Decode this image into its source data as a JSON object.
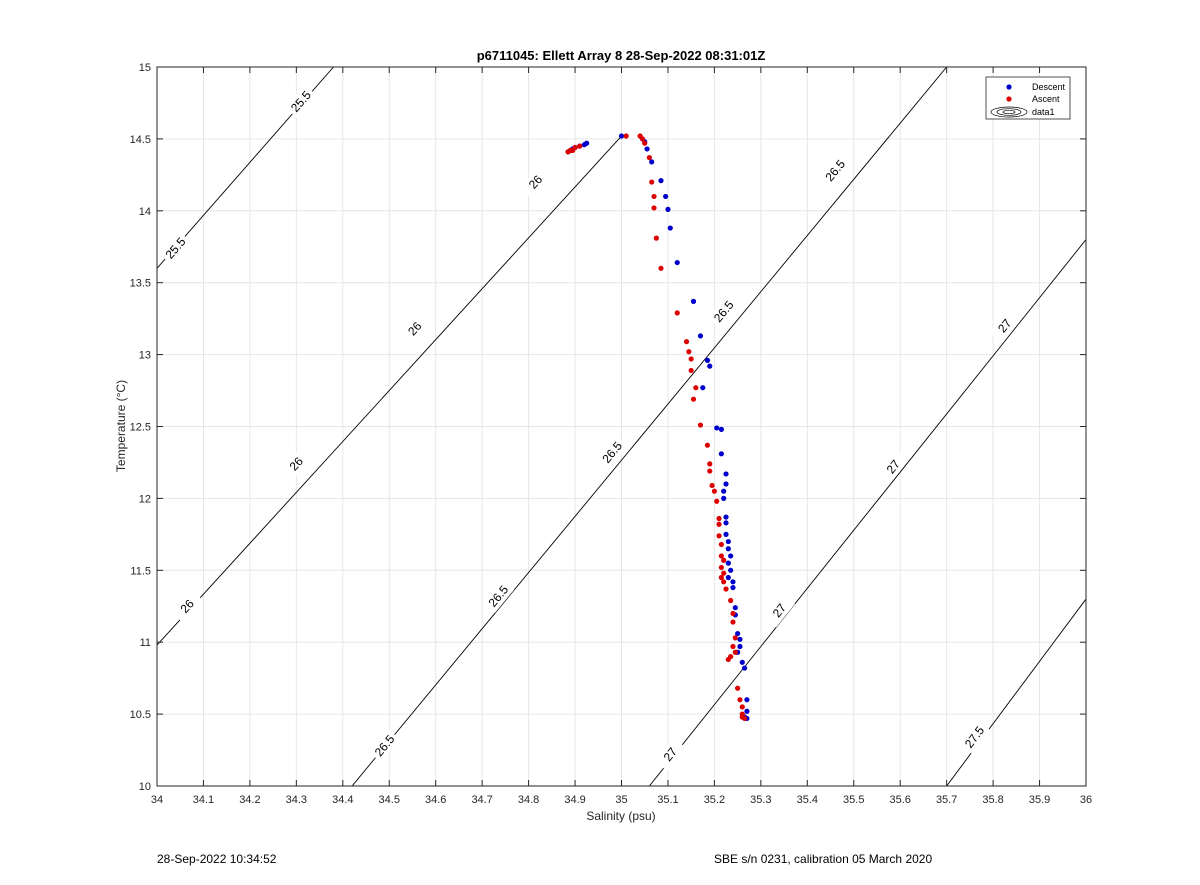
{
  "footer": {
    "left": "28-Sep-2022 10:34:52",
    "right": "SBE s/n 0231, calibration 05 March 2020"
  },
  "chart_data": {
    "type": "scatter",
    "title": "p6711045: Ellett Array 8 28-Sep-2022 08:31:01Z",
    "xlabel": "Salinity (psu)",
    "ylabel": "Temperature (°C)",
    "xlim": [
      34,
      36
    ],
    "ylim": [
      10,
      15
    ],
    "xticks": [
      "34",
      "34.1",
      "34.2",
      "34.3",
      "34.4",
      "34.5",
      "34.6",
      "34.7",
      "34.8",
      "34.9",
      "35",
      "35.1",
      "35.2",
      "35.3",
      "35.4",
      "35.5",
      "35.6",
      "35.7",
      "35.8",
      "35.9",
      "36"
    ],
    "yticks": [
      "10",
      "10.5",
      "11",
      "11.5",
      "12",
      "12.5",
      "13",
      "13.5",
      "14",
      "14.5",
      "15"
    ],
    "grid": true,
    "legend_position": "top-right",
    "legend": [
      "Descent",
      "Ascent",
      "data1"
    ],
    "colors": {
      "descent": "#0000cc",
      "ascent": "#dd0000",
      "contour": "#000000",
      "grid": "#e6e6e6"
    },
    "contours": [
      {
        "level": 25.5,
        "line": [
          [
            34.0,
            13.6
          ],
          [
            34.38,
            15.0
          ]
        ],
        "labels": [
          {
            "text": "25.5",
            "x": 34.04,
            "y": 13.74
          },
          {
            "text": "25.5",
            "x": 34.31,
            "y": 14.76
          }
        ]
      },
      {
        "level": 26,
        "line": [
          [
            34.0,
            10.98
          ],
          [
            35.0,
            14.52
          ]
        ],
        "labels": [
          {
            "text": "26",
            "x": 34.065,
            "y": 11.25
          },
          {
            "text": "26",
            "x": 34.3,
            "y": 12.24
          },
          {
            "text": "26",
            "x": 34.555,
            "y": 13.18
          },
          {
            "text": "26",
            "x": 34.815,
            "y": 14.2
          }
        ]
      },
      {
        "level": 26.5,
        "line": [
          [
            34.42,
            10.0
          ],
          [
            35.7,
            15.0
          ]
        ],
        "labels": [
          {
            "text": "26.5",
            "x": 34.49,
            "y": 10.28
          },
          {
            "text": "26.5",
            "x": 34.735,
            "y": 11.32
          },
          {
            "text": "26.5",
            "x": 34.98,
            "y": 12.32
          },
          {
            "text": "26.5",
            "x": 35.22,
            "y": 13.3
          },
          {
            "text": "26.5",
            "x": 35.46,
            "y": 14.28
          }
        ]
      },
      {
        "level": 27,
        "line": [
          [
            35.06,
            10.0
          ],
          [
            36.0,
            13.8
          ]
        ],
        "labels": [
          {
            "text": "27",
            "x": 35.105,
            "y": 10.22
          },
          {
            "text": "27",
            "x": 35.34,
            "y": 11.22
          },
          {
            "text": "27",
            "x": 35.585,
            "y": 12.22
          },
          {
            "text": "27",
            "x": 35.825,
            "y": 13.2
          }
        ]
      },
      {
        "level": 27.5,
        "line": [
          [
            35.7,
            10.0
          ],
          [
            36.0,
            11.3
          ]
        ],
        "labels": [
          {
            "text": "27.5",
            "x": 35.76,
            "y": 10.34
          }
        ]
      }
    ],
    "series": [
      {
        "name": "Descent",
        "points": [
          [
            34.885,
            14.41
          ],
          [
            34.89,
            14.42
          ],
          [
            34.895,
            14.43
          ],
          [
            34.9,
            14.44
          ],
          [
            34.91,
            14.45
          ],
          [
            34.92,
            14.46
          ],
          [
            34.925,
            14.47
          ],
          [
            35.0,
            14.52
          ],
          [
            35.05,
            14.48
          ],
          [
            35.055,
            14.43
          ],
          [
            35.065,
            14.34
          ],
          [
            35.085,
            14.21
          ],
          [
            35.095,
            14.1
          ],
          [
            35.1,
            14.01
          ],
          [
            35.105,
            13.88
          ],
          [
            35.12,
            13.64
          ],
          [
            35.155,
            13.37
          ],
          [
            35.17,
            13.13
          ],
          [
            35.185,
            12.96
          ],
          [
            35.19,
            12.92
          ],
          [
            35.175,
            12.77
          ],
          [
            35.205,
            12.49
          ],
          [
            35.215,
            12.48
          ],
          [
            35.215,
            12.31
          ],
          [
            35.225,
            12.17
          ],
          [
            35.225,
            12.1
          ],
          [
            35.22,
            12.05
          ],
          [
            35.22,
            12.0
          ],
          [
            35.225,
            11.87
          ],
          [
            35.225,
            11.83
          ],
          [
            35.225,
            11.75
          ],
          [
            35.23,
            11.7
          ],
          [
            35.23,
            11.65
          ],
          [
            35.235,
            11.6
          ],
          [
            35.23,
            11.55
          ],
          [
            35.235,
            11.5
          ],
          [
            35.23,
            11.45
          ],
          [
            35.24,
            11.42
          ],
          [
            35.24,
            11.38
          ],
          [
            35.245,
            11.24
          ],
          [
            35.245,
            11.19
          ],
          [
            35.25,
            11.06
          ],
          [
            35.255,
            11.02
          ],
          [
            35.255,
            10.97
          ],
          [
            35.25,
            10.93
          ],
          [
            35.26,
            10.86
          ],
          [
            35.265,
            10.82
          ],
          [
            35.27,
            10.6
          ],
          [
            35.27,
            10.52
          ],
          [
            35.265,
            10.48
          ],
          [
            35.27,
            10.47
          ]
        ]
      },
      {
        "name": "Ascent",
        "points": [
          [
            34.885,
            14.41
          ],
          [
            34.89,
            14.42
          ],
          [
            34.895,
            14.42
          ],
          [
            34.9,
            14.44
          ],
          [
            34.91,
            14.45
          ],
          [
            35.01,
            14.52
          ],
          [
            35.04,
            14.52
          ],
          [
            35.045,
            14.5
          ],
          [
            35.05,
            14.47
          ],
          [
            35.06,
            14.37
          ],
          [
            35.065,
            14.2
          ],
          [
            35.07,
            14.1
          ],
          [
            35.07,
            14.02
          ],
          [
            35.075,
            13.81
          ],
          [
            35.085,
            13.6
          ],
          [
            35.12,
            13.29
          ],
          [
            35.14,
            13.09
          ],
          [
            35.145,
            13.02
          ],
          [
            35.15,
            12.97
          ],
          [
            35.15,
            12.89
          ],
          [
            35.16,
            12.77
          ],
          [
            35.155,
            12.69
          ],
          [
            35.17,
            12.51
          ],
          [
            35.185,
            12.37
          ],
          [
            35.19,
            12.24
          ],
          [
            35.19,
            12.19
          ],
          [
            35.195,
            12.09
          ],
          [
            35.2,
            12.05
          ],
          [
            35.205,
            11.98
          ],
          [
            35.21,
            11.86
          ],
          [
            35.21,
            11.82
          ],
          [
            35.21,
            11.74
          ],
          [
            35.215,
            11.68
          ],
          [
            35.215,
            11.6
          ],
          [
            35.22,
            11.57
          ],
          [
            35.215,
            11.52
          ],
          [
            35.22,
            11.48
          ],
          [
            35.215,
            11.45
          ],
          [
            35.22,
            11.42
          ],
          [
            35.225,
            11.37
          ],
          [
            35.235,
            11.29
          ],
          [
            35.24,
            11.2
          ],
          [
            35.24,
            11.14
          ],
          [
            35.245,
            11.03
          ],
          [
            35.24,
            10.97
          ],
          [
            35.245,
            10.93
          ],
          [
            35.235,
            10.9
          ],
          [
            35.23,
            10.88
          ],
          [
            35.25,
            10.68
          ],
          [
            35.255,
            10.6
          ],
          [
            35.26,
            10.55
          ],
          [
            35.26,
            10.5
          ],
          [
            35.265,
            10.47
          ],
          [
            35.26,
            10.48
          ]
        ]
      }
    ]
  }
}
